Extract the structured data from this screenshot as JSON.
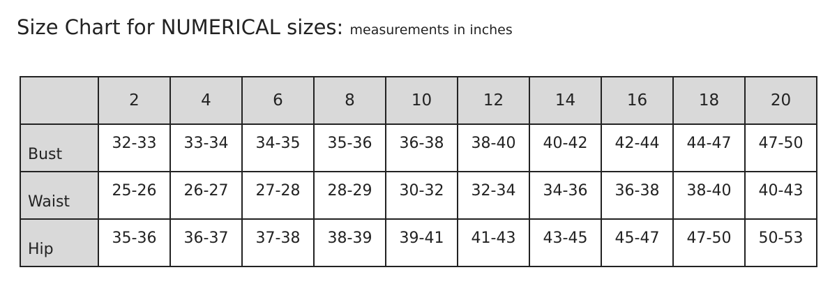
{
  "title": {
    "main": "Size Chart for NUMERICAL sizes:",
    "sub": "measurements in inches"
  },
  "table": {
    "header_bg": "#d9d9d9",
    "sizes": [
      "2",
      "4",
      "6",
      "8",
      "10",
      "12",
      "14",
      "16",
      "18",
      "20"
    ],
    "rows": [
      {
        "label": "Bust",
        "values": [
          "32-33",
          "33-34",
          "34-35",
          "35-36",
          "36-38",
          "38-40",
          "40-42",
          "42-44",
          "44-47",
          "47-50"
        ]
      },
      {
        "label": "Waist",
        "values": [
          "25-26",
          "26-27",
          "27-28",
          "28-29",
          "30-32",
          "32-34",
          "34-36",
          "36-38",
          "38-40",
          "40-43"
        ]
      },
      {
        "label": "Hip",
        "values": [
          "35-36",
          "36-37",
          "37-38",
          "38-39",
          "39-41",
          "41-43",
          "43-45",
          "45-47",
          "47-50",
          "50-53"
        ]
      }
    ]
  }
}
